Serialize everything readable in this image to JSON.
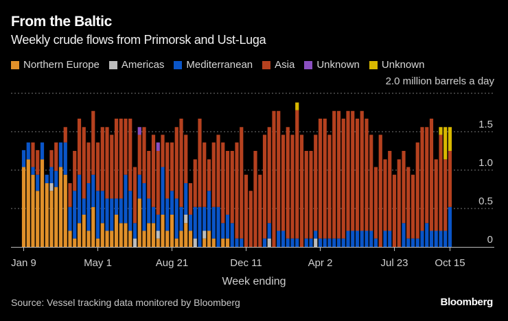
{
  "header": {
    "title": "From the Baltic",
    "subtitle": "Weekly crude flows from Primorsk and Ust-Luga"
  },
  "footer": {
    "source": "Source: Vessel tracking data monitored by Bloomberg",
    "brand": "Bloomberg"
  },
  "chart_data": {
    "type": "bar",
    "stacked": true,
    "title": "From the Baltic",
    "subtitle": "Weekly crude flows from Primorsk and Ust-Luga",
    "xlabel": "Week ending",
    "ylabel": "million barrels a day",
    "unit_label": "million barrels a day",
    "ylim": [
      0,
      2.0
    ],
    "yticks": [
      {
        "value": 0,
        "label": "0"
      },
      {
        "value": 0.5,
        "label": "0.5"
      },
      {
        "value": 1.0,
        "label": "1.0"
      },
      {
        "value": 1.5,
        "label": "1.5"
      },
      {
        "value": 2.0,
        "label": "2.0"
      }
    ],
    "grid": true,
    "legend_position": "top-left",
    "first_week": "Jan 9",
    "last_week": "Oct 15",
    "bar_count": 93,
    "xticks": [
      {
        "index": 0,
        "label": "Jan 9"
      },
      {
        "index": 16,
        "label": "May 1"
      },
      {
        "index": 32,
        "label": "Aug 21"
      },
      {
        "index": 48,
        "label": "Dec 11"
      },
      {
        "index": 64,
        "label": "Apr 2"
      },
      {
        "index": 80,
        "label": "Jul 23"
      },
      {
        "index": 92,
        "label": "Oct 15"
      }
    ],
    "series": [
      {
        "name": "Northern Europe",
        "color": "#E0902A",
        "values": [
          1.04,
          1.14,
          0.94,
          0.73,
          1.14,
          0.83,
          0.73,
          0.78,
          1.04,
          0.94,
          0.21,
          0.11,
          0.31,
          0.42,
          0.21,
          0.52,
          0.11,
          0.31,
          0.21,
          0.21,
          0.42,
          0.31,
          0.31,
          0.21,
          0,
          0.63,
          0.21,
          0.31,
          0.31,
          0.11,
          0.42,
          0.21,
          0.42,
          0.11,
          0.21,
          0.31,
          0.21,
          0,
          0,
          0.11,
          0.21,
          0.11,
          0,
          0.11,
          0.11,
          0,
          0,
          0,
          0,
          0,
          0,
          0,
          0,
          0,
          0,
          0,
          0,
          0,
          0,
          0,
          0,
          0,
          0,
          0,
          0,
          0,
          0,
          0,
          0,
          0,
          0,
          0,
          0,
          0,
          0,
          0,
          0,
          0,
          0,
          0,
          0,
          0,
          0,
          0,
          0,
          0,
          0,
          0,
          0,
          0,
          0,
          0,
          0
        ]
      },
      {
        "name": "Americas",
        "color": "#BDBDBD",
        "values": [
          0,
          0,
          0,
          0,
          0,
          0,
          0.1,
          0,
          0,
          0,
          0,
          0,
          0,
          0,
          0,
          0,
          0,
          0,
          0,
          0,
          0,
          0,
          0,
          0,
          0.11,
          0,
          0,
          0,
          0,
          0.1,
          0,
          0,
          0,
          0,
          0,
          0.11,
          0,
          0.11,
          0,
          0.1,
          0,
          0,
          0,
          0,
          0,
          0,
          0,
          0,
          0,
          0,
          0,
          0,
          0,
          0.11,
          0,
          0,
          0,
          0,
          0,
          0,
          0,
          0,
          0,
          0.11,
          0,
          0,
          0,
          0,
          0,
          0,
          0,
          0,
          0,
          0,
          0,
          0,
          0,
          0,
          0,
          0,
          0,
          0,
          0,
          0,
          0,
          0,
          0,
          0,
          0,
          0,
          0,
          0,
          0
        ]
      },
      {
        "name": "Mediterranean",
        "color": "#0A55C8",
        "values": [
          0.22,
          0.22,
          0.1,
          0.21,
          0.22,
          0.11,
          0.21,
          0.21,
          0.32,
          0.42,
          0.31,
          0.62,
          0.63,
          0.21,
          0.62,
          0.42,
          0.62,
          0.42,
          0.42,
          0.42,
          0.21,
          0.32,
          0.63,
          0.52,
          0.2,
          0.31,
          0.62,
          0.32,
          0.21,
          0.21,
          0.62,
          0.42,
          0.31,
          0.52,
          0.31,
          0.41,
          0.21,
          0.41,
          0.52,
          0.31,
          0.52,
          0.41,
          0.52,
          0.2,
          0.31,
          0.31,
          0.11,
          0.11,
          0,
          0,
          0,
          0,
          0.11,
          0.2,
          0,
          0.21,
          0.21,
          0.11,
          0.11,
          0.11,
          0,
          0.11,
          0.11,
          0.1,
          0.11,
          0.11,
          0.11,
          0.11,
          0.11,
          0.11,
          0.21,
          0.21,
          0.21,
          0.21,
          0.21,
          0.21,
          0.11,
          0,
          0.21,
          0.21,
          0,
          0,
          0.31,
          0.11,
          0.11,
          0.11,
          0.21,
          0.31,
          0.21,
          0.21,
          0.21,
          0.21,
          0.52
        ]
      },
      {
        "name": "Asia",
        "color": "#B5411F",
        "values": [
          0,
          0,
          0.32,
          0.32,
          0,
          0,
          0.22,
          0.37,
          0,
          0.2,
          0.31,
          0.52,
          0.73,
          0.93,
          0.53,
          0.83,
          0.63,
          0.83,
          0.93,
          0.83,
          1.04,
          1.04,
          0.73,
          0.94,
          0.73,
          0.52,
          0.73,
          0.62,
          0.94,
          0.83,
          0.42,
          0.73,
          0.63,
          0.93,
          1.15,
          0.63,
          0.41,
          0.62,
          1.15,
          0.84,
          0.41,
          0.84,
          0.94,
          1.05,
          0.83,
          0.94,
          1.25,
          1.45,
          0.94,
          0.73,
          1.25,
          0.94,
          1.35,
          1.25,
          1.77,
          1.56,
          1.25,
          1.45,
          1.35,
          1.67,
          1.46,
          1.14,
          1.14,
          1.25,
          1.56,
          1.56,
          1.35,
          1.66,
          1.66,
          1.56,
          1.56,
          1.56,
          1.46,
          1.56,
          1.46,
          1.25,
          0.93,
          1.46,
          0.93,
          1.04,
          0.94,
          1.14,
          0.94,
          0.93,
          0.83,
          1.25,
          1.35,
          1.25,
          1.46,
          0.93,
          1.25,
          0.93,
          0.73
        ]
      },
      {
        "name": "Unknown",
        "color": "#8A4FC0",
        "values": [
          0,
          0,
          0,
          0,
          0,
          0,
          0,
          0,
          0,
          0,
          0,
          0,
          0,
          0,
          0,
          0,
          0,
          0,
          0,
          0,
          0,
          0,
          0,
          0,
          0,
          0.1,
          0,
          0,
          0,
          0.11,
          0,
          0,
          0,
          0,
          0,
          0,
          0,
          0,
          0,
          0,
          0,
          0,
          0,
          0,
          0,
          0,
          0,
          0,
          0,
          0,
          0,
          0,
          0,
          0,
          0,
          0,
          0,
          0,
          0,
          0,
          0,
          0,
          0,
          0,
          0,
          0,
          0,
          0,
          0,
          0,
          0,
          0,
          0,
          0,
          0,
          0,
          0,
          0,
          0,
          0,
          0,
          0,
          0,
          0,
          0,
          0,
          0,
          0,
          0,
          0,
          0,
          0,
          0
        ]
      },
      {
        "name": "Unknown",
        "color": "#D9B800",
        "values": [
          0,
          0,
          0,
          0,
          0,
          0,
          0,
          0,
          0,
          0,
          0,
          0,
          0,
          0,
          0,
          0,
          0,
          0,
          0,
          0,
          0,
          0,
          0,
          0,
          0,
          0,
          0,
          0,
          0,
          0,
          0,
          0,
          0,
          0,
          0,
          0,
          0,
          0,
          0,
          0,
          0,
          0,
          0,
          0,
          0,
          0,
          0,
          0,
          0,
          0,
          0,
          0,
          0,
          0,
          0,
          0,
          0,
          0,
          0,
          0.1,
          0,
          0,
          0,
          0,
          0,
          0,
          0,
          0,
          0,
          0,
          0,
          0,
          0,
          0,
          0,
          0,
          0,
          0,
          0,
          0,
          0,
          0,
          0,
          0,
          0,
          0,
          0,
          0,
          0,
          0,
          0.1,
          0.42,
          0.31
        ]
      }
    ]
  }
}
